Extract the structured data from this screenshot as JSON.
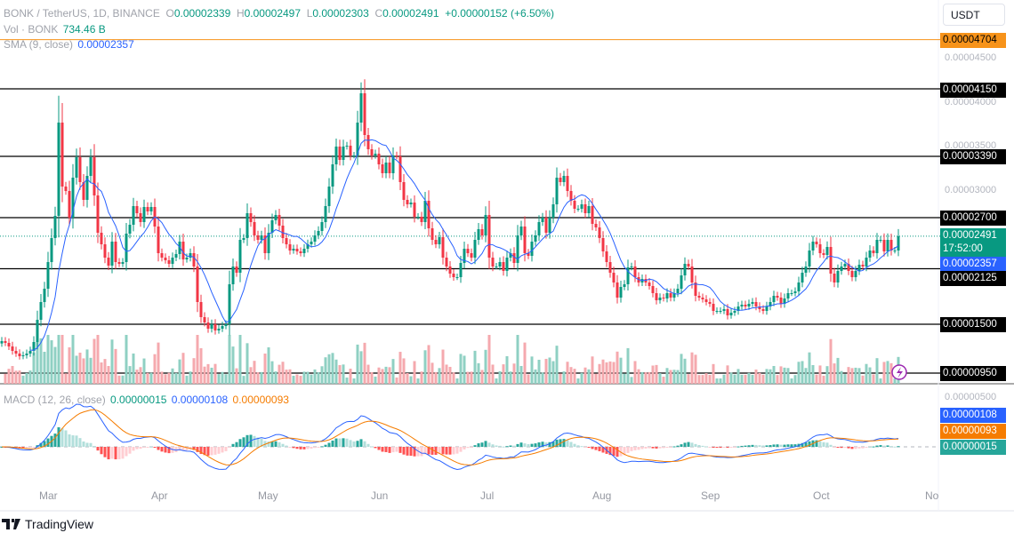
{
  "header": {
    "symbol": "BONK / TetherUS, 1D, BINANCE",
    "o_label": "O",
    "open": "0.00002339",
    "h_label": "H",
    "high": "0.00002497",
    "l_label": "L",
    "low": "0.00002303",
    "c_label": "C",
    "close": "0.00002491",
    "change": "+0.00000152 (+6.50%)",
    "vol_label": "Vol · BONK",
    "vol_value": "734.46 B",
    "sma_label": "SMA (9, close)",
    "sma_value": "0.00002357"
  },
  "macd_legend": {
    "label": "MACD (12, 26, close)",
    "hist": "0.00000015",
    "macd": "0.00000108",
    "signal": "0.00000093"
  },
  "currency_button": "USDT",
  "price_axis": [
    "0.00004500",
    "0.00004000",
    "0.00003500",
    "0.00003000",
    "0.00000500"
  ],
  "levels": [
    {
      "label": "0.00004704",
      "value": 4.704e-05,
      "color": "#f7931a"
    },
    {
      "label": "0.00004150",
      "value": 4.15e-05,
      "color": "#000000"
    },
    {
      "label": "0.00003390",
      "value": 3.39e-05,
      "color": "#000000"
    },
    {
      "label": "0.00002700",
      "value": 2.7e-05,
      "color": "#000000"
    },
    {
      "label": "0.00002125",
      "value": 2.125e-05,
      "color": "#000000"
    },
    {
      "label": "0.00001500",
      "value": 1.5e-05,
      "color": "#000000"
    },
    {
      "label": "0.00000950",
      "value": 9.5e-06,
      "color": "#000000"
    }
  ],
  "current_price": {
    "label": "0.00002491",
    "countdown": "17:52:00",
    "color": "#089981"
  },
  "sma_tag": {
    "label": "0.00002357",
    "color": "#2962ff"
  },
  "macd_tags": [
    {
      "label": "0.00000108",
      "color": "#2962ff"
    },
    {
      "label": "0.00000093",
      "color": "#f57c00"
    },
    {
      "label": "0.00000015",
      "color": "#26a69a"
    }
  ],
  "months": [
    "Mar",
    "Apr",
    "May",
    "Jun",
    "Jul",
    "Aug",
    "Sep",
    "Oct",
    "No"
  ],
  "footer": {
    "brand": "TradingView"
  },
  "icons": {
    "alert": "lightning-icon",
    "logo": "tradingview-logo"
  },
  "colors": {
    "up": "#089981",
    "down": "#f23645",
    "sma": "#2962ff",
    "signal": "#f57c00"
  },
  "chart_data": {
    "type": "candlestick",
    "interval": "1D",
    "indicators": [
      "SMA 9",
      "Volume",
      "MACD (12, 26, close)"
    ],
    "price_range": [
      9e-06,
      5e-05
    ],
    "closes": [
      1.31e-05,
      1.29e-05,
      1.25e-05,
      1.2e-05,
      1.17e-05,
      1.14e-05,
      1.15e-05,
      1.17e-05,
      1.2e-05,
      1.3e-05,
      1.55e-05,
      1.75e-05,
      1.9e-05,
      2.2e-05,
      2.47e-05,
      2.72e-05,
      3.77e-05,
      3.05e-05,
      3e-05,
      2.7e-05,
      3.15e-05,
      3.38e-05,
      3.1e-05,
      2.9e-05,
      3.17e-05,
      3.38e-05,
      2.95e-05,
      2.53e-05,
      2.4e-05,
      2.25e-05,
      2.16e-05,
      2.43e-05,
      2.2e-05,
      2.18e-05,
      2.2e-05,
      2.52e-05,
      2.62e-05,
      2.83e-05,
      2.75e-05,
      2.65e-05,
      2.82e-05,
      2.77e-05,
      2.82e-05,
      2.6e-05,
      2.3e-05,
      2.25e-05,
      2.22e-05,
      2.18e-05,
      2.25e-05,
      2.29e-05,
      2.43e-05,
      2.23e-05,
      2.25e-05,
      2.3e-05,
      2.15e-05,
      1.75e-05,
      1.58e-05,
      1.52e-05,
      1.45e-05,
      1.5e-05,
      1.43e-05,
      1.45e-05,
      1.48e-05,
      1.5e-05,
      1.95e-05,
      2.15e-05,
      2.08e-05,
      2.45e-05,
      2.47e-05,
      2.75e-05,
      2.65e-05,
      2.5e-05,
      2.45e-05,
      2.5e-05,
      2.3e-05,
      2.53e-05,
      2.67e-05,
      2.73e-05,
      2.61e-05,
      2.47e-05,
      2.4e-05,
      2.33e-05,
      2.35e-05,
      2.32e-05,
      2.3e-05,
      2.35e-05,
      2.4e-05,
      2.43e-05,
      2.5e-05,
      2.55e-05,
      2.65e-05,
      2.83e-05,
      3.05e-05,
      3.3e-05,
      3.5e-05,
      3.35e-05,
      3.5e-05,
      3.51e-05,
      3.4e-05,
      3.4e-05,
      3.77e-05,
      4.1e-05,
      3.63e-05,
      3.47e-05,
      3.4e-05,
      3.42e-05,
      3.3e-05,
      3.2e-05,
      3.32e-05,
      3.2e-05,
      3.4e-05,
      3.39e-05,
      3.1e-05,
      2.9e-05,
      2.85e-05,
      2.87e-05,
      2.71e-05,
      2.71e-05,
      2.65e-05,
      2.89e-05,
      2.58e-05,
      2.45e-05,
      2.4e-05,
      2.48e-05,
      2.25e-05,
      2.15e-05,
      2.07e-05,
      2.03e-05,
      2.03e-05,
      2.19e-05,
      2.35e-05,
      2.3e-05,
      2.25e-05,
      2.45e-05,
      2.57e-05,
      2.5e-05,
      2.73e-05,
      2.25e-05,
      2.15e-05,
      2.15e-05,
      2.2e-05,
      2.1e-05,
      2.25e-05,
      2.3e-05,
      2.19e-05,
      2.5e-05,
      2.6e-05,
      2.3e-05,
      2.27e-05,
      2.43e-05,
      2.5e-05,
      2.65e-05,
      2.7e-05,
      2.53e-05,
      2.7e-05,
      2.85e-05,
      3.15e-05,
      3.1e-05,
      3.17e-05,
      3e-05,
      2.89e-05,
      2.8e-05,
      2.8e-05,
      2.85e-05,
      2.75e-05,
      2.83e-05,
      2.63e-05,
      2.59e-05,
      2.47e-05,
      2.32e-05,
      2.2e-05,
      2.08e-05,
      1.97e-05,
      1.8e-05,
      1.92e-05,
      1.95e-05,
      2.14e-05,
      2.15e-05,
      2.03e-05,
      1.97e-05,
      2.01e-05,
      1.97e-05,
      1.93e-05,
      1.85e-05,
      1.77e-05,
      1.8e-05,
      1.79e-05,
      1.85e-05,
      1.8e-05,
      1.85e-05,
      1.9e-05,
      2.05e-05,
      2.18e-05,
      2.15e-05,
      1.97e-05,
      1.82e-05,
      1.8e-05,
      1.78e-05,
      1.75e-05,
      1.73e-05,
      1.65e-05,
      1.65e-05,
      1.65e-05,
      1.67e-05,
      1.6e-05,
      1.63e-05,
      1.65e-05,
      1.7e-05,
      1.72e-05,
      1.7e-05,
      1.73e-05,
      1.75e-05,
      1.7e-05,
      1.67e-05,
      1.65e-05,
      1.7e-05,
      1.75e-05,
      1.82e-05,
      1.8e-05,
      1.73e-05,
      1.79e-05,
      1.85e-05,
      1.85e-05,
      1.87e-05,
      1.97e-05,
      2.08e-05,
      2.15e-05,
      2.33e-05,
      2.43e-05,
      2.4e-05,
      2.3e-05,
      2.28e-05,
      2.37e-05,
      2.07e-05,
      1.97e-05,
      2.1e-05,
      2.15e-05,
      2.18e-05,
      2.1e-05,
      2.03e-05,
      2.1e-05,
      2.17e-05,
      2.15e-05,
      2.25e-05,
      2.33e-05,
      2.3e-05,
      2.45e-05,
      2.45e-05,
      2.32e-05,
      2.45e-05,
      2.33e-05,
      2.33e-05,
      2.491e-05
    ]
  }
}
